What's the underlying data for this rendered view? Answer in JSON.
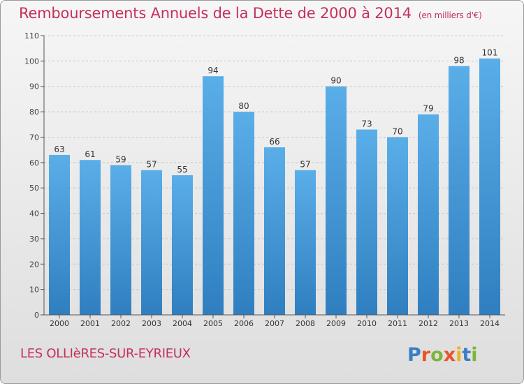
{
  "header": {
    "title": "Remboursements Annuels de la Dette de 2000 à 2014",
    "unit": "(en milliers d'€)"
  },
  "footer": {
    "commune": "LES OLLIèRES-SUR-EYRIEUX",
    "logo_text": "Proxiti"
  },
  "colors": {
    "title": "#c4305a",
    "bar_top": "#5aaee8",
    "bar_bottom": "#2f7fc0",
    "grid": "#c8c8c8",
    "axis": "#555555"
  },
  "chart_data": {
    "type": "bar",
    "title": "Remboursements Annuels de la Dette de 2000 à 2014",
    "subtitle": "(en milliers d'€)",
    "xlabel": "",
    "ylabel": "",
    "categories": [
      "2000",
      "2001",
      "2002",
      "2003",
      "2004",
      "2005",
      "2006",
      "2007",
      "2008",
      "2009",
      "2010",
      "2011",
      "2012",
      "2013",
      "2014"
    ],
    "values": [
      63,
      61,
      59,
      57,
      55,
      94,
      80,
      66,
      57,
      90,
      73,
      70,
      79,
      98,
      101
    ],
    "ylim": [
      0,
      110
    ],
    "yticks": [
      0,
      10,
      20,
      30,
      40,
      50,
      60,
      70,
      80,
      90,
      100,
      110
    ],
    "grid": true,
    "data_labels": true
  }
}
